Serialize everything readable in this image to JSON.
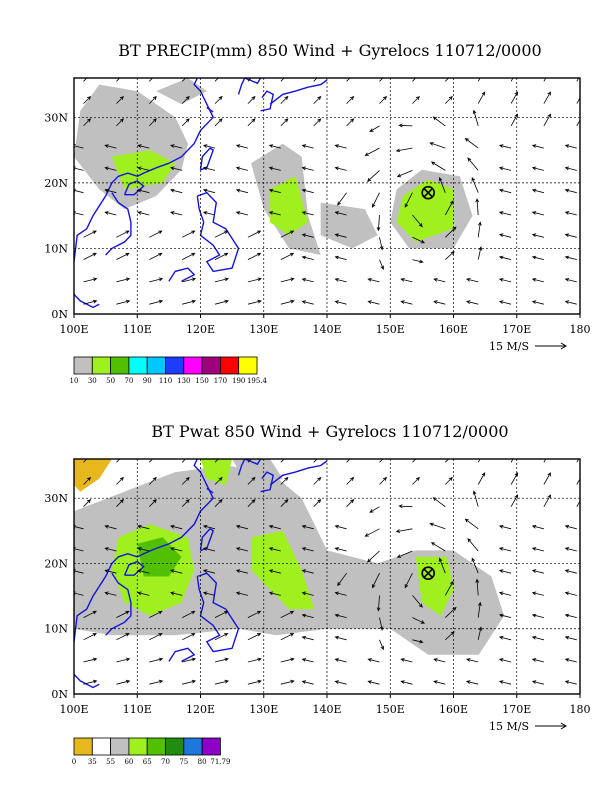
{
  "panels": [
    {
      "title": "BT PRECIP(mm) 850 Wind + Gyrelocs 110712/0000",
      "field": "precip",
      "colorbar_labels": [
        "10",
        "30",
        "50",
        "70",
        "90",
        "110",
        "130",
        "150",
        "170",
        "190",
        "195.4"
      ],
      "colorbar_colors": [
        "#c0c0c0",
        "#a0f020",
        "#50c000",
        "#00ffff",
        "#00c8ff",
        "#1e3cff",
        "#ff00ff",
        "#a0007a",
        "#ff0000",
        "#ffff00"
      ]
    },
    {
      "title": "BT Pwat 850 Wind + Gyrelocs 110712/0000",
      "field": "pwat",
      "colorbar_labels": [
        "0",
        "35",
        "55",
        "60",
        "65",
        "70",
        "75",
        "80",
        "71.79"
      ],
      "colorbar_colors": [
        "#e6b81e",
        "#ffffff",
        "#c0c0c0",
        "#a0f020",
        "#50c000",
        "#208c10",
        "#1e78dc",
        "#8c00c8"
      ]
    }
  ],
  "axes": {
    "x_ticks": [
      "100E",
      "110E",
      "120E",
      "130E",
      "140E",
      "150E",
      "160E",
      "170E",
      "180"
    ],
    "y_ticks": [
      "0N",
      "10N",
      "20N",
      "30N"
    ],
    "lon_range": [
      100,
      180
    ],
    "lat_range": [
      0,
      36
    ],
    "grid": true
  },
  "vector_key": {
    "label": "15 M/S"
  },
  "gyre_location": {
    "lon": 156,
    "lat": 18.5
  },
  "colors": {
    "coast": "#1414dc",
    "shade_light": "#c0c0c0",
    "shade_green": "#a0f020",
    "shade_dark_green": "#50c000"
  }
}
